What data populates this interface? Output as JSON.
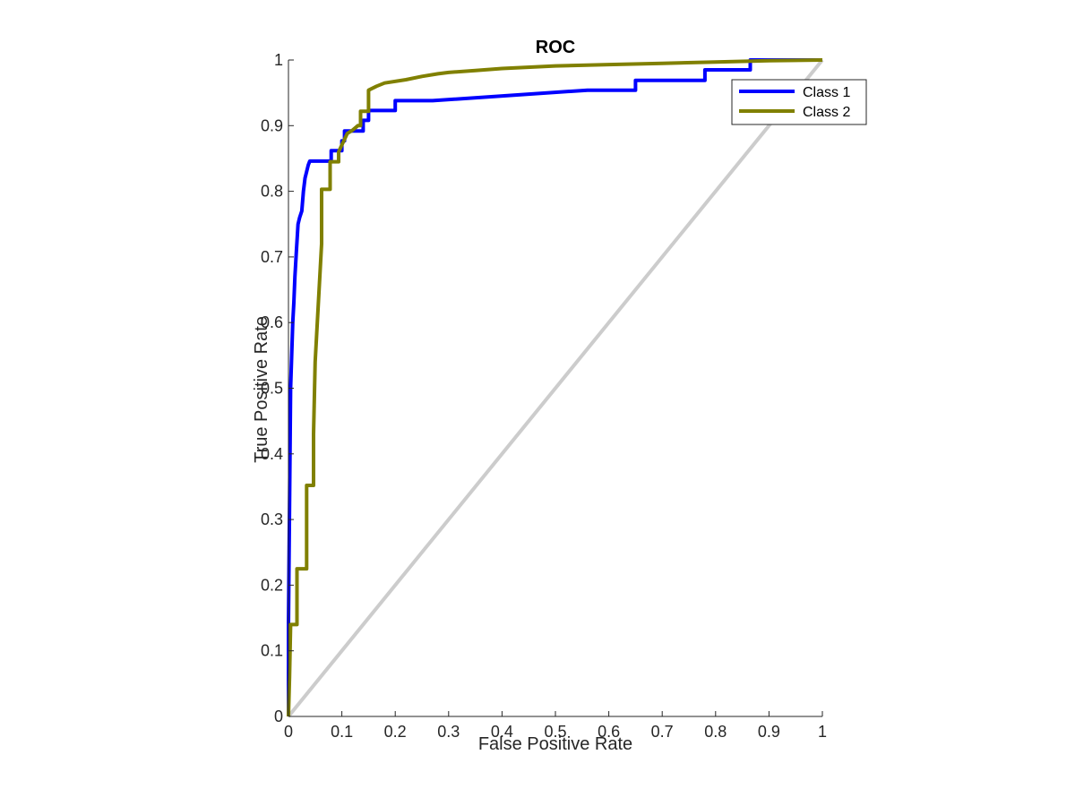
{
  "chart_data": {
    "type": "line",
    "title": "ROC",
    "xlabel": "False Positive Rate",
    "ylabel": "True Positive Rate",
    "xlim": [
      0,
      1
    ],
    "ylim": [
      0,
      1
    ],
    "xticks": [
      "0",
      "0.1",
      "0.2",
      "0.3",
      "0.4",
      "0.5",
      "0.6",
      "0.7",
      "0.8",
      "0.9",
      "1"
    ],
    "yticks": [
      "0",
      "0.1",
      "0.2",
      "0.3",
      "0.4",
      "0.5",
      "0.6",
      "0.7",
      "0.8",
      "0.9",
      "1"
    ],
    "xtick_values": [
      0,
      0.1,
      0.2,
      0.3,
      0.4,
      0.5,
      0.6,
      0.7,
      0.8,
      0.9,
      1
    ],
    "ytick_values": [
      0,
      0.1,
      0.2,
      0.3,
      0.4,
      0.5,
      0.6,
      0.7,
      0.8,
      0.9,
      1
    ],
    "grid": false,
    "legend_position": "top-right",
    "reference_line": {
      "name": "chance",
      "color": "#cccccc",
      "x": [
        0,
        1
      ],
      "y": [
        0,
        1
      ]
    },
    "series": [
      {
        "name": "Class 1",
        "color": "#0000ff",
        "x": [
          0,
          0,
          0.002,
          0.004,
          0.006,
          0.008,
          0.01,
          0.012,
          0.015,
          0.018,
          0.021,
          0.025,
          0.028,
          0.031,
          0.034,
          0.037,
          0.04,
          0.044,
          0.048,
          0.048,
          0.08,
          0.08,
          0.1,
          0.1,
          0.105,
          0.105,
          0.118,
          0.14,
          0.14,
          0.15,
          0.15,
          0.2,
          0.2,
          0.27,
          0.56,
          0.65,
          0.65,
          0.78,
          0.78,
          0.865,
          0.865,
          1
        ],
        "y": [
          0,
          0.14,
          0.32,
          0.5,
          0.55,
          0.6,
          0.63,
          0.67,
          0.71,
          0.75,
          0.76,
          0.77,
          0.8,
          0.82,
          0.83,
          0.84,
          0.846,
          0.846,
          0.846,
          0.846,
          0.846,
          0.862,
          0.862,
          0.877,
          0.877,
          0.892,
          0.892,
          0.892,
          0.908,
          0.908,
          0.923,
          0.923,
          0.938,
          0.938,
          0.954,
          0.954,
          0.969,
          0.969,
          0.985,
          0.985,
          1.0,
          1.0
        ]
      },
      {
        "name": "Class 2",
        "color": "#808000",
        "x": [
          0,
          0.002,
          0.004,
          0.004,
          0.016,
          0.016,
          0.034,
          0.034,
          0.047,
          0.047,
          0.05,
          0.062,
          0.062,
          0.078,
          0.078,
          0.094,
          0.094,
          0.11,
          0.12,
          0.13,
          0.135,
          0.135,
          0.15,
          0.15,
          0.165,
          0.18,
          0.22,
          0.25,
          0.28,
          0.3,
          0.35,
          0.4,
          0.5,
          0.6,
          0.7,
          0.8,
          0.9,
          1.0
        ],
        "y": [
          0,
          0.06,
          0.14,
          0.14,
          0.14,
          0.225,
          0.225,
          0.352,
          0.352,
          0.43,
          0.54,
          0.72,
          0.803,
          0.803,
          0.845,
          0.845,
          0.86,
          0.888,
          0.893,
          0.9,
          0.9,
          0.922,
          0.922,
          0.954,
          0.96,
          0.965,
          0.97,
          0.975,
          0.979,
          0.981,
          0.984,
          0.987,
          0.991,
          0.993,
          0.995,
          0.997,
          0.999,
          1.0
        ]
      }
    ]
  }
}
